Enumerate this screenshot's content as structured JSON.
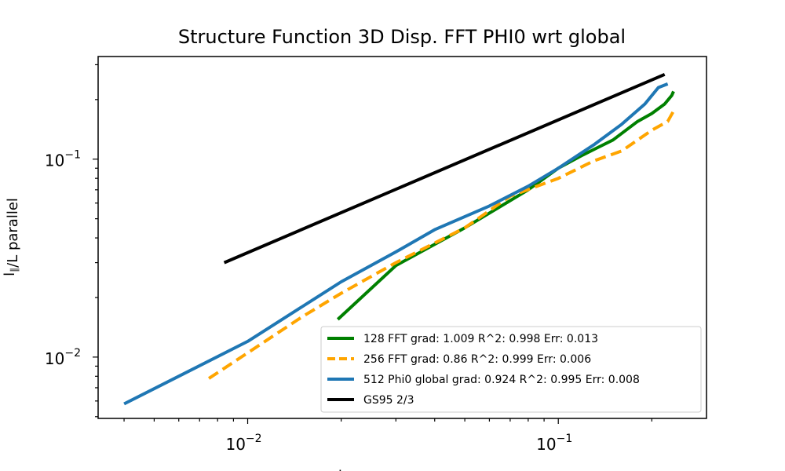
{
  "chart_data": {
    "type": "line",
    "title": "Structure Function 3D Disp. FFT PHI0 wrt global",
    "ylabel": "l_∥/L parallel",
    "xlabel": "l_⊥/L perpendicular",
    "xscale": "log",
    "yscale": "log",
    "xlim": [
      0.0033,
      0.3
    ],
    "ylim": [
      0.0049,
      0.33
    ],
    "x_ticks": [
      {
        "value": 0.01,
        "label": "10",
        "exp": "−2"
      },
      {
        "value": 0.1,
        "label": "10",
        "exp": "−1"
      }
    ],
    "y_ticks": [
      {
        "value": 0.01,
        "label": "10",
        "exp": "−2"
      },
      {
        "value": 0.1,
        "label": "10",
        "exp": "−1"
      }
    ],
    "grid": false,
    "legend_position": "lower-right",
    "series": [
      {
        "name": "128 FFT grad: 1.009 R^2: 0.998  Err: 0.013",
        "color": "#008000",
        "dash": "solid",
        "points": [
          [
            0.0195,
            0.0155
          ],
          [
            0.03,
            0.029
          ],
          [
            0.05,
            0.045
          ],
          [
            0.08,
            0.07
          ],
          [
            0.1,
            0.09
          ],
          [
            0.12,
            0.105
          ],
          [
            0.15,
            0.125
          ],
          [
            0.18,
            0.155
          ],
          [
            0.2,
            0.17
          ],
          [
            0.22,
            0.19
          ],
          [
            0.232,
            0.21
          ],
          [
            0.235,
            0.22
          ]
        ]
      },
      {
        "name": "256 FFT grad: 0.86 R^2: 0.999  Err: 0.006",
        "color": "#ffa500",
        "dash": "dashed",
        "points": [
          [
            0.0075,
            0.0078
          ],
          [
            0.01,
            0.0105
          ],
          [
            0.015,
            0.016
          ],
          [
            0.02,
            0.021
          ],
          [
            0.03,
            0.03
          ],
          [
            0.05,
            0.045
          ],
          [
            0.07,
            0.065
          ],
          [
            0.1,
            0.08
          ],
          [
            0.13,
            0.098
          ],
          [
            0.16,
            0.11
          ],
          [
            0.2,
            0.14
          ],
          [
            0.225,
            0.155
          ],
          [
            0.235,
            0.175
          ]
        ]
      },
      {
        "name": "512 Phi0 global grad: 0.924 R^2: 0.995  Err: 0.008",
        "color": "#1f77b4",
        "dash": "solid",
        "points": [
          [
            0.004,
            0.0058
          ],
          [
            0.006,
            0.008
          ],
          [
            0.01,
            0.012
          ],
          [
            0.015,
            0.018
          ],
          [
            0.02,
            0.024
          ],
          [
            0.03,
            0.034
          ],
          [
            0.04,
            0.044
          ],
          [
            0.06,
            0.058
          ],
          [
            0.08,
            0.073
          ],
          [
            0.1,
            0.09
          ],
          [
            0.13,
            0.118
          ],
          [
            0.16,
            0.15
          ],
          [
            0.19,
            0.19
          ],
          [
            0.21,
            0.23
          ],
          [
            0.225,
            0.24
          ]
        ]
      },
      {
        "name": "GS95 2/3",
        "color": "#000000",
        "dash": "solid",
        "points": [
          [
            0.0084,
            0.03
          ],
          [
            0.22,
            0.268
          ]
        ]
      }
    ]
  }
}
